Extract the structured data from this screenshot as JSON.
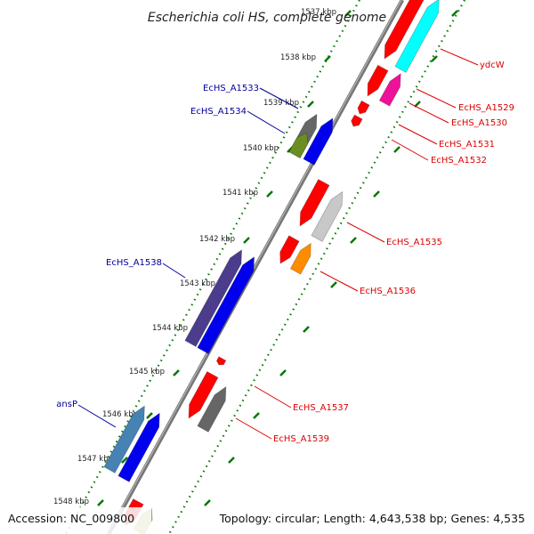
{
  "title": "Escherichia coli HS, complete genome",
  "footer": {
    "accession": "Accession: NC_009800",
    "topology": "Topology: circular; Length: 4,643,538 bp; Genes: 4,535"
  },
  "ticks": [
    {
      "label": "1537 kbp"
    },
    {
      "label": "1538 kbp"
    },
    {
      "label": "1539 kbp"
    },
    {
      "label": "1540 kbp"
    },
    {
      "label": "1541 kbp"
    },
    {
      "label": "1542 kbp"
    },
    {
      "label": "1543 kbp"
    },
    {
      "label": "1544 kbp"
    },
    {
      "label": "1545 kbp"
    },
    {
      "label": "1546 kbp"
    },
    {
      "label": "1547 kbp"
    },
    {
      "label": "1548 kbp"
    }
  ],
  "gene_labels": [
    {
      "label": "ydcW",
      "color": "#dd0000"
    },
    {
      "label": "EcHS_A1529",
      "color": "#dd0000"
    },
    {
      "label": "EcHS_A1530",
      "color": "#dd0000"
    },
    {
      "label": "EcHS_A1531",
      "color": "#dd0000"
    },
    {
      "label": "EcHS_A1532",
      "color": "#dd0000"
    },
    {
      "label": "EcHS_A1533",
      "color": "#000099"
    },
    {
      "label": "EcHS_A1534",
      "color": "#000099"
    },
    {
      "label": "EcHS_A1535",
      "color": "#dd0000"
    },
    {
      "label": "EcHS_A1536",
      "color": "#dd0000"
    },
    {
      "label": "EcHS_A1538",
      "color": "#000099"
    },
    {
      "label": "EcHS_A1537",
      "color": "#dd0000"
    },
    {
      "label": "EcHS_A1539",
      "color": "#dd0000"
    },
    {
      "label": "ansP",
      "color": "#000099"
    }
  ],
  "colors": {
    "red_gene": "#ff0000",
    "blue_gene": "#0000ee",
    "cyan_gene": "#00ffff",
    "magenta_gene": "#ee1199",
    "olive_gene": "#6b8e23",
    "dark_gray_gene": "#666666",
    "light_gray_gene": "#c8c8c8",
    "orange_gene": "#ff8c00",
    "indigo_gene": "#4b3c8c",
    "steel_blue_gene": "#4682b4",
    "khaki_gene": "#bdb76b",
    "tick_green": "#007700",
    "backbone_gray": "#888888"
  }
}
